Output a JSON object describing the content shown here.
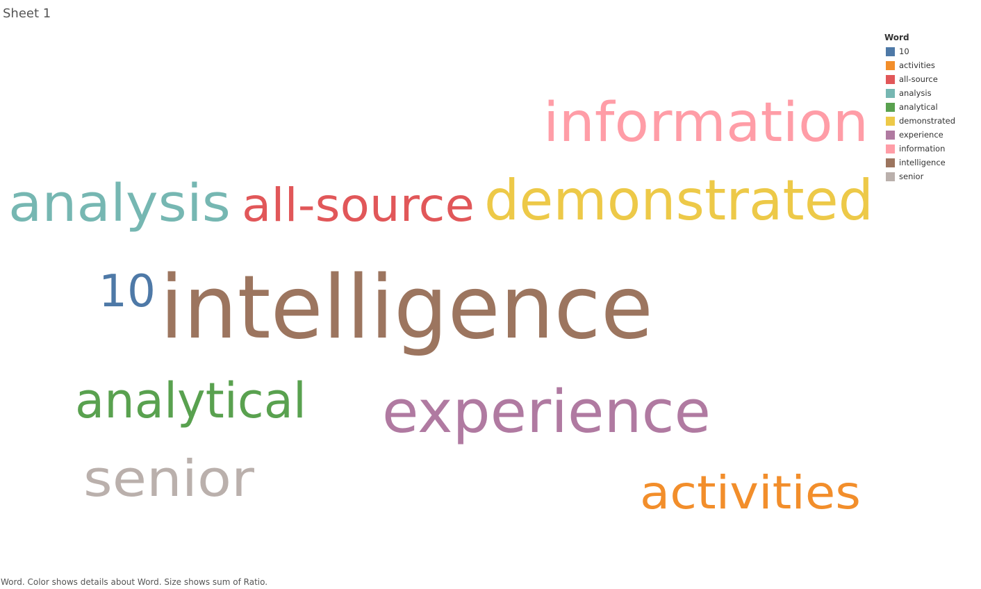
{
  "sheet_title": "Sheet 1",
  "caption": "Word.  Color shows details about Word.  Size shows sum of Ratio.",
  "chart_data": {
    "type": "word-cloud",
    "legend_title": "Word",
    "legend_placement": "top-right",
    "words": [
      {
        "text": "10",
        "color": "#4e79a7"
      },
      {
        "text": "activities",
        "color": "#f28e2b"
      },
      {
        "text": "all-source",
        "color": "#e15759"
      },
      {
        "text": "analysis",
        "color": "#76b7b2"
      },
      {
        "text": "analytical",
        "color": "#59a14f"
      },
      {
        "text": "demonstrated",
        "color": "#edc948"
      },
      {
        "text": "experience",
        "color": "#b07aa1"
      },
      {
        "text": "information",
        "color": "#ff9da7"
      },
      {
        "text": "intelligence",
        "color": "#9c755f"
      },
      {
        "text": "senior",
        "color": "#bab0ac"
      }
    ]
  }
}
